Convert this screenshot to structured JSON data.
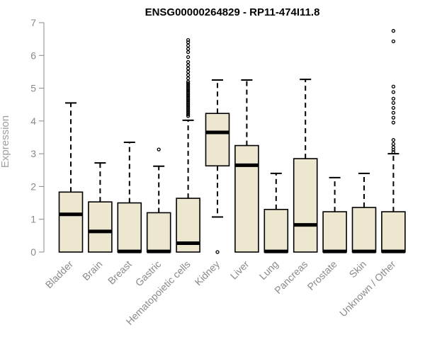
{
  "chart_data": {
    "type": "boxplot",
    "title": "ENSG00000264829 - RP11-474I11.8",
    "xlabel": "",
    "ylabel": "Expression",
    "ylim": [
      0,
      7
    ],
    "yticks": [
      0,
      1,
      2,
      3,
      4,
      5,
      6,
      7
    ],
    "grid": false,
    "legend": "none",
    "colors": {
      "box_fill": "#ede7cf",
      "box_stroke": "#000000",
      "axis": "#8a8a8a"
    },
    "categories": [
      "Bladder",
      "Brain",
      "Breast",
      "Gastric",
      "Hematopoietic cells",
      "Kidney",
      "Liver",
      "Lung",
      "Pancreas",
      "Prostate",
      "Skin",
      "Unknown / Other"
    ],
    "boxes": [
      {
        "category": "Bladder",
        "whisker_low": 0,
        "q1": 0,
        "median": 1.15,
        "q3": 1.83,
        "whisker_high": 4.55,
        "outliers": []
      },
      {
        "category": "Brain",
        "whisker_low": 0,
        "q1": 0,
        "median": 0.63,
        "q3": 1.53,
        "whisker_high": 2.72,
        "outliers": []
      },
      {
        "category": "Breast",
        "whisker_low": 0,
        "q1": 0,
        "median": 0.02,
        "q3": 1.5,
        "whisker_high": 3.35,
        "outliers": []
      },
      {
        "category": "Gastric",
        "whisker_low": 0,
        "q1": 0,
        "median": 0.02,
        "q3": 1.2,
        "whisker_high": 2.62,
        "outliers": [
          3.13
        ]
      },
      {
        "category": "Hematopoietic cells",
        "whisker_low": 0,
        "q1": 0,
        "median": 0.27,
        "q3": 1.64,
        "whisker_high": 4.02,
        "outliers": [
          4.15,
          4.2,
          4.25,
          4.3,
          4.35,
          4.4,
          4.45,
          4.5,
          4.55,
          4.6,
          4.65,
          4.7,
          4.75,
          4.8,
          4.85,
          4.9,
          4.95,
          5.0,
          5.05,
          5.1,
          5.15,
          5.2,
          5.3,
          5.4,
          5.5,
          5.6,
          5.7,
          5.8,
          5.95,
          6.1,
          6.2,
          6.3,
          6.4,
          6.47
        ]
      },
      {
        "category": "Kidney",
        "whisker_low": 1.07,
        "q1": 2.63,
        "median": 3.65,
        "q3": 4.23,
        "whisker_high": 5.25,
        "outliers": [
          0.0
        ]
      },
      {
        "category": "Liver",
        "whisker_low": 0,
        "q1": 0,
        "median": 2.65,
        "q3": 3.25,
        "whisker_high": 5.25,
        "outliers": []
      },
      {
        "category": "Lung",
        "whisker_low": 0,
        "q1": 0,
        "median": 0.02,
        "q3": 1.3,
        "whisker_high": 2.4,
        "outliers": []
      },
      {
        "category": "Pancreas",
        "whisker_low": 0,
        "q1": 0,
        "median": 0.83,
        "q3": 2.85,
        "whisker_high": 5.27,
        "outliers": []
      },
      {
        "category": "Prostate",
        "whisker_low": 0,
        "q1": 0,
        "median": 0.02,
        "q3": 1.23,
        "whisker_high": 2.27,
        "outliers": []
      },
      {
        "category": "Skin",
        "whisker_low": 0,
        "q1": 0,
        "median": 0.02,
        "q3": 1.36,
        "whisker_high": 2.4,
        "outliers": []
      },
      {
        "category": "Unknown / Other",
        "whisker_low": 0,
        "q1": 0,
        "median": 0.02,
        "q3": 1.23,
        "whisker_high": 3.0,
        "outliers": [
          3.05,
          3.12,
          3.2,
          3.3,
          3.42,
          3.95,
          4.1,
          4.25,
          4.4,
          4.55,
          4.68,
          4.88,
          5.05,
          6.43,
          6.75
        ]
      }
    ]
  }
}
